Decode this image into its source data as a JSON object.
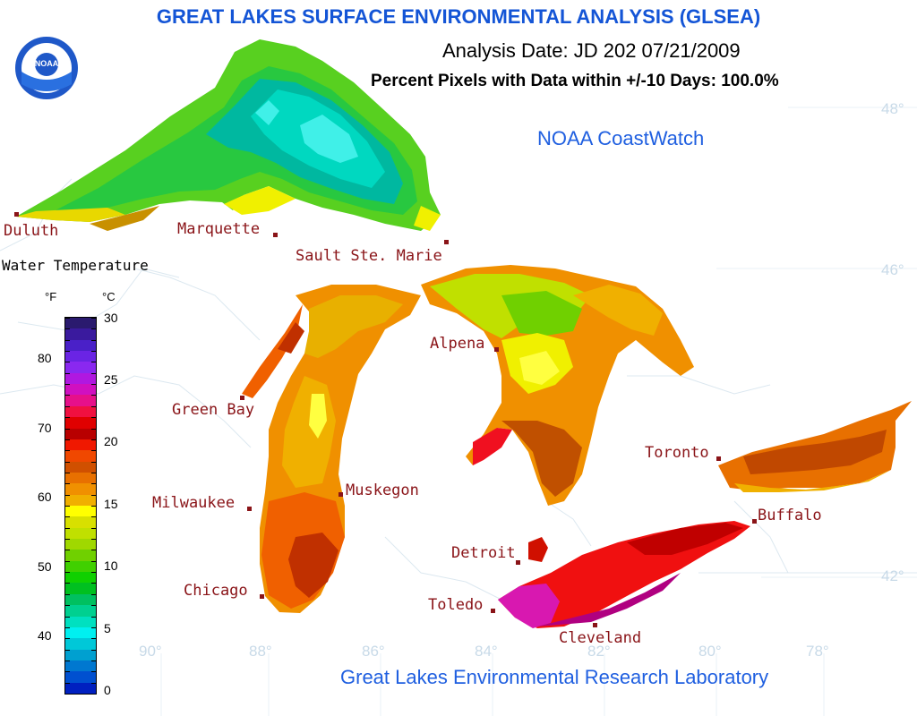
{
  "header": {
    "title": "GREAT LAKES SURFACE ENVIRONMENTAL ANALYSIS (GLSEA)",
    "analysis_date": "Analysis Date:  JD 202 07/21/2009",
    "percent_pixels": "Percent Pixels with Data within +/-10 Days: 100.0%",
    "source": "NOAA CoastWatch",
    "footer": "Great Lakes Environmental Research Laboratory",
    "logo_text": "NOAA"
  },
  "cities": [
    {
      "id": "duluth",
      "name": "Duluth"
    },
    {
      "id": "marquette",
      "name": "Marquette"
    },
    {
      "id": "sault",
      "name": "Sault Ste. Marie"
    },
    {
      "id": "greenbay",
      "name": "Green Bay"
    },
    {
      "id": "alpena",
      "name": "Alpena"
    },
    {
      "id": "milwaukee",
      "name": "Milwaukee"
    },
    {
      "id": "muskegon",
      "name": "Muskegon"
    },
    {
      "id": "toronto",
      "name": "Toronto"
    },
    {
      "id": "buffalo",
      "name": "Buffalo"
    },
    {
      "id": "detroit",
      "name": "Detroit"
    },
    {
      "id": "chicago",
      "name": "Chicago"
    },
    {
      "id": "toledo",
      "name": "Toledo"
    },
    {
      "id": "cleveland",
      "name": "Cleveland"
    }
  ],
  "gridlabels": {
    "lat": [
      "48°",
      "46°",
      "42°"
    ],
    "lon": [
      "90°",
      "88°",
      "86°",
      "84°",
      "82°",
      "80°",
      "78°"
    ]
  },
  "legend": {
    "title": "Water Temperature",
    "f_unit": "°F",
    "c_unit": "°C",
    "f_ticks": [
      "80",
      "70",
      "60",
      "50",
      "40"
    ],
    "c_ticks": [
      "30",
      "25",
      "20",
      "15",
      "10",
      "5",
      "0"
    ],
    "colors": [
      "#2a1a6e",
      "#3a1a9e",
      "#4a20c8",
      "#6a24e4",
      "#8a28f0",
      "#b018e0",
      "#d010c0",
      "#e6108a",
      "#f01040",
      "#e00000",
      "#b80000",
      "#f01800",
      "#f04800",
      "#d05000",
      "#e87000",
      "#f09000",
      "#f0b000",
      "#ffff00",
      "#d8e000",
      "#c0e000",
      "#a0d800",
      "#70d000",
      "#40d000",
      "#10d000",
      "#00c020",
      "#00c060",
      "#00d090",
      "#00e0c0",
      "#00f0f0",
      "#00c8d8",
      "#00a0d0",
      "#0078d0",
      "#0050d0",
      "#0020c0"
    ]
  },
  "colors": {
    "title_blue": "#1455d6",
    "city_red": "#8a1418"
  }
}
